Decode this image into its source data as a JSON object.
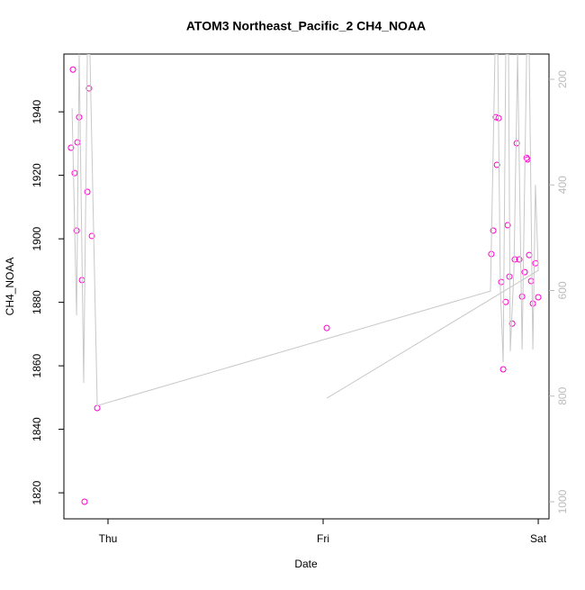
{
  "chart_data": {
    "type": "scatter",
    "title": "ATOM3 Northeast_Pacific_2 CH4_NOAA",
    "x_label": "Date",
    "y_label": "CH4_NOAA",
    "xlim": [
      -0.205,
      2.05
    ],
    "xticks": [
      {
        "value": 0,
        "label": "Thu"
      },
      {
        "value": 1,
        "label": "Fri"
      },
      {
        "value": 2,
        "label": "Sat"
      }
    ],
    "ylim": [
      1811.8,
      1958.2
    ],
    "yticks": [
      1820,
      1840,
      1860,
      1880,
      1900,
      1920,
      1940
    ],
    "y2lim": [
      1032.4,
      152.2
    ],
    "y2ticks": [
      200,
      400,
      600,
      800,
      1000
    ],
    "series": [
      {
        "name": "CH4_NOAA",
        "color": "#ff00cc",
        "mode": "markers",
        "x": [
          -0.172,
          -0.163,
          -0.155,
          -0.146,
          -0.142,
          -0.134,
          -0.121,
          -0.109,
          -0.096,
          -0.088,
          -0.075,
          -0.05,
          1.017,
          1.782,
          1.791,
          1.803,
          1.808,
          1.816,
          1.828,
          1.837,
          1.849,
          1.858,
          1.866,
          1.879,
          1.891,
          1.9,
          1.912,
          1.925,
          1.937,
          1.946,
          1.95,
          1.958,
          1.967,
          1.975,
          1.987,
          2.0
        ],
        "values": [
          1928.7,
          1953.3,
          1920.7,
          1902.6,
          1930.4,
          1938.3,
          1887.0,
          1817.2,
          1914.8,
          1947.4,
          1900.9,
          1846.7,
          1871.9,
          1895.2,
          1902.6,
          1938.3,
          1923.3,
          1938.0,
          1886.4,
          1858.9,
          1880.1,
          1904.3,
          1888.1,
          1873.3,
          1893.5,
          1930.1,
          1893.5,
          1881.8,
          1889.5,
          1925.5,
          1925.0,
          1894.9,
          1886.7,
          1879.6,
          1892.3,
          1881.6
        ]
      },
      {
        "color": "#c8c8c8",
        "mode": "line",
        "axis": "y2",
        "x": [
          -0.167,
          -0.146,
          -0.134,
          -0.113,
          -0.096,
          -0.084,
          -0.05,
          1.778,
          1.799,
          1.812,
          1.824,
          1.837,
          1.849,
          1.862,
          1.87,
          1.887,
          1.904,
          1.925,
          1.946,
          1.958,
          1.975,
          1.987,
          2.0,
          1.017
        ],
        "values": [
          255,
          647,
          152,
          775,
          152,
          152,
          818,
          601,
          152,
          152,
          596,
          736,
          152,
          152,
          715,
          562,
          152,
          712,
          152,
          152,
          712,
          400,
          562,
          804
        ]
      }
    ]
  }
}
